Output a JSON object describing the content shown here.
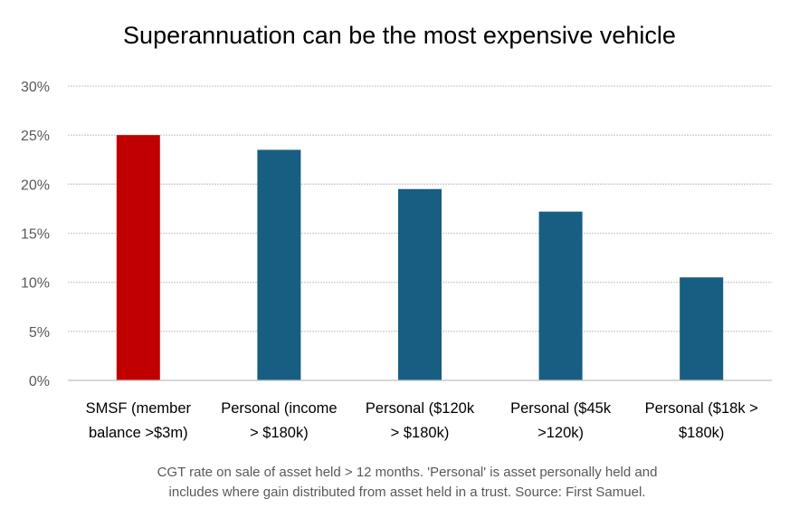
{
  "chart_data": {
    "type": "bar",
    "title": "Superannuation can be the most expensive vehicle",
    "caption_lines": [
      "CGT rate on sale of asset held > 12 months. 'Personal' is asset personally held and",
      "includes where gain distributed from asset held in a trust. Source: First Samuel."
    ],
    "categories": [
      [
        "SMSF (member",
        "balance >$3m)"
      ],
      [
        "Personal (income",
        "> $180k)"
      ],
      [
        "Personal ($120k",
        "> $180k)"
      ],
      [
        "Personal ($45k",
        ">120k)"
      ],
      [
        "Personal ($18k >",
        "$180k)"
      ]
    ],
    "values": [
      25,
      23.5,
      19.5,
      17.2,
      10.5
    ],
    "colors": [
      "#C00000",
      "#175E82",
      "#175E82",
      "#175E82",
      "#175E82"
    ],
    "yticks": [
      "0%",
      "5%",
      "10%",
      "15%",
      "20%",
      "25%",
      "30%"
    ],
    "ylim": [
      0,
      30
    ],
    "ystep": 5,
    "grid": true,
    "xlabel": "",
    "ylabel": ""
  }
}
